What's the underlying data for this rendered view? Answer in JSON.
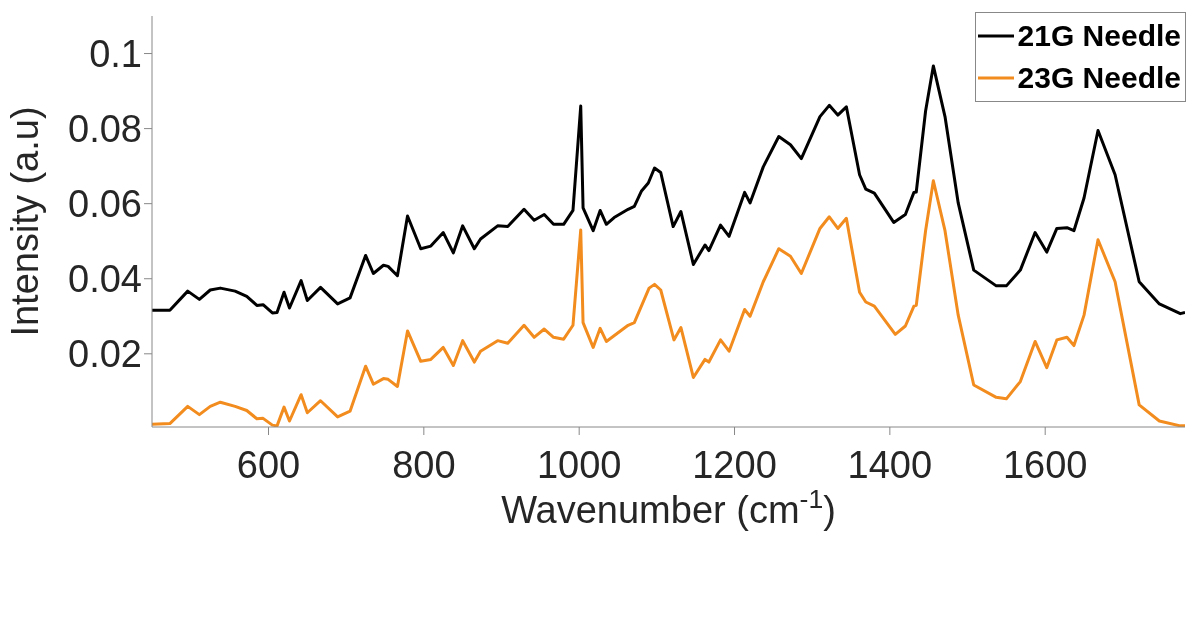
{
  "chart_data": {
    "type": "line",
    "xlabel": "Wavenumber (cm$^{-1}$)",
    "ylabel": "Intensity (a.u)",
    "xlim": [
      450,
      1780
    ],
    "xticks": [
      600,
      800,
      1000,
      1200,
      1400,
      1600
    ],
    "ylim": [
      0.0005,
      0.11
    ],
    "yticks": [
      0.02,
      0.04,
      0.06,
      0.08,
      0.1
    ],
    "grid": false,
    "legend": "top right",
    "line_style": "solid",
    "marker": "none",
    "series": [
      {
        "name": "21G Needle",
        "color": "#000000",
        "x": [
          450,
          473,
          496,
          511,
          525,
          538,
          557,
          572,
          585,
          593,
          605,
          611,
          620,
          627,
          642,
          650,
          667,
          689,
          705,
          725,
          735,
          748,
          754,
          766,
          779,
          796,
          809,
          825,
          838,
          850,
          865,
          873,
          895,
          908,
          929,
          942,
          955,
          967,
          980,
          992,
          1002,
          1005,
          1018,
          1027,
          1035,
          1045,
          1063,
          1071,
          1080,
          1089,
          1097,
          1105,
          1121,
          1131,
          1147,
          1162,
          1167,
          1182,
          1193,
          1213,
          1220,
          1237,
          1257,
          1272,
          1286,
          1310,
          1322,
          1333,
          1344,
          1361,
          1369,
          1380,
          1405,
          1420,
          1431,
          1434,
          1446,
          1456,
          1471,
          1488,
          1508,
          1537,
          1550,
          1568,
          1587,
          1602,
          1615,
          1628,
          1637,
          1650,
          1668,
          1690,
          1721,
          1747,
          1774,
          1780
        ],
        "values": [
          0.0316,
          0.0316,
          0.0367,
          0.0345,
          0.037,
          0.0375,
          0.0367,
          0.0353,
          0.0329,
          0.0331,
          0.0309,
          0.031,
          0.0364,
          0.0322,
          0.0395,
          0.0342,
          0.0377,
          0.0333,
          0.0349,
          0.0462,
          0.0414,
          0.0436,
          0.0433,
          0.0408,
          0.0567,
          0.048,
          0.0487,
          0.0523,
          0.0469,
          0.0541,
          0.048,
          0.0506,
          0.0541,
          0.0539,
          0.0585,
          0.0556,
          0.0571,
          0.0545,
          0.0545,
          0.0582,
          0.086,
          0.0589,
          0.0528,
          0.0582,
          0.0545,
          0.0563,
          0.0585,
          0.0593,
          0.0633,
          0.0655,
          0.0695,
          0.0683,
          0.0539,
          0.0579,
          0.0438,
          0.049,
          0.0475,
          0.0543,
          0.0513,
          0.063,
          0.0602,
          0.0698,
          0.0779,
          0.0757,
          0.072,
          0.0832,
          0.0862,
          0.0836,
          0.0858,
          0.0677,
          0.0639,
          0.0628,
          0.055,
          0.0571,
          0.063,
          0.0631,
          0.0847,
          0.0967,
          0.0832,
          0.0602,
          0.0423,
          0.0381,
          0.0381,
          0.0423,
          0.0523,
          0.0471,
          0.0534,
          0.0536,
          0.0528,
          0.0615,
          0.0795,
          0.0677,
          0.0392,
          0.0333,
          0.0307,
          0.031
        ]
      },
      {
        "name": "23G Needle",
        "color": "#f28c1e",
        "x": [
          450,
          473,
          496,
          511,
          525,
          538,
          557,
          572,
          585,
          593,
          605,
          611,
          620,
          627,
          642,
          650,
          667,
          689,
          705,
          725,
          735,
          748,
          754,
          766,
          779,
          796,
          809,
          825,
          838,
          850,
          865,
          873,
          895,
          908,
          929,
          942,
          955,
          967,
          980,
          992,
          1002,
          1005,
          1018,
          1027,
          1035,
          1063,
          1071,
          1090,
          1097,
          1105,
          1122,
          1131,
          1147,
          1162,
          1167,
          1182,
          1193,
          1213,
          1220,
          1237,
          1257,
          1272,
          1286,
          1310,
          1322,
          1333,
          1344,
          1361,
          1369,
          1380,
          1407,
          1420,
          1431,
          1434,
          1446,
          1456,
          1471,
          1488,
          1508,
          1537,
          1550,
          1568,
          1587,
          1602,
          1615,
          1628,
          1637,
          1650,
          1668,
          1690,
          1721,
          1747,
          1774,
          1780
        ],
        "values": [
          0.0012,
          0.0014,
          0.006,
          0.0038,
          0.006,
          0.0071,
          0.006,
          0.0049,
          0.0027,
          0.0028,
          0.001,
          0.0008,
          0.0058,
          0.0021,
          0.0091,
          0.0043,
          0.0075,
          0.0032,
          0.0047,
          0.0167,
          0.0119,
          0.0134,
          0.0132,
          0.0113,
          0.0261,
          0.018,
          0.0185,
          0.0217,
          0.0169,
          0.0235,
          0.0178,
          0.0207,
          0.0235,
          0.0228,
          0.0276,
          0.0244,
          0.0266,
          0.0244,
          0.0239,
          0.0276,
          0.053,
          0.0283,
          0.0217,
          0.0268,
          0.0233,
          0.0276,
          0.0283,
          0.0375,
          0.0385,
          0.037,
          0.0237,
          0.027,
          0.0137,
          0.0185,
          0.0178,
          0.0237,
          0.0207,
          0.0318,
          0.03,
          0.0392,
          0.048,
          0.046,
          0.0414,
          0.0534,
          0.0565,
          0.0534,
          0.0561,
          0.0364,
          0.0338,
          0.0327,
          0.0252,
          0.0274,
          0.0327,
          0.0329,
          0.0528,
          0.0661,
          0.0528,
          0.0303,
          0.0117,
          0.0084,
          0.008,
          0.0126,
          0.0233,
          0.0163,
          0.0237,
          0.0244,
          0.0222,
          0.0303,
          0.0504,
          0.0392,
          0.0064,
          0.0021,
          0.0008,
          0.0008
        ]
      }
    ]
  }
}
